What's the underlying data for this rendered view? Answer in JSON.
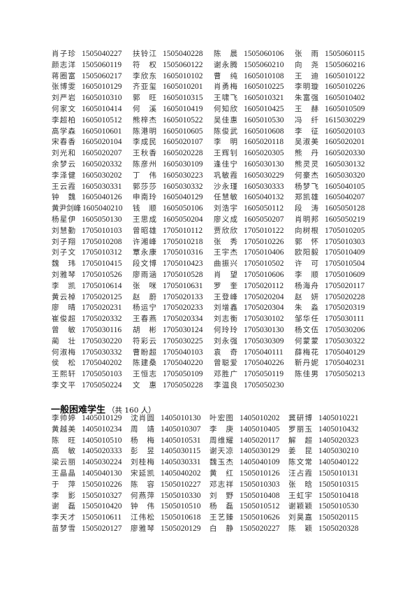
{
  "section1": {
    "rows": [
      [
        [
          "肖子珍",
          "1505040227"
        ],
        [
          "扶铃江",
          "1505040228"
        ],
        [
          "陈晨",
          "1505060106"
        ],
        [
          "张雨",
          "1505060115"
        ]
      ],
      [
        [
          "颜志洋",
          "1505060119"
        ],
        [
          "符权",
          "1505060122"
        ],
        [
          "谢永腾",
          "1505060210"
        ],
        [
          "向尧",
          "1505060216"
        ]
      ],
      [
        [
          "蒋圈富",
          "1505060217"
        ],
        [
          "李欣东",
          "1605010102"
        ],
        [
          "曹纯",
          "1605010108"
        ],
        [
          "王迪",
          "1605010122"
        ]
      ],
      [
        [
          "张博雯",
          "1605010129"
        ],
        [
          "齐亚玺",
          "1605010201"
        ],
        [
          "肖勇梅",
          "1605010225"
        ],
        [
          "李明璇",
          "1605010226"
        ]
      ],
      [
        [
          "刘严岩",
          "1605010310"
        ],
        [
          "郭旺",
          "1605010315"
        ],
        [
          "王啸飞",
          "1605010321"
        ],
        [
          "朱富强",
          "1605010402"
        ]
      ],
      [
        [
          "何家文",
          "1605010414"
        ],
        [
          "何溪",
          "1605010419"
        ],
        [
          "何知欣",
          "1605010425"
        ],
        [
          "王赫",
          "1605010509"
        ]
      ],
      [
        [
          "李超柏",
          "1605010512"
        ],
        [
          "熊梓杰",
          "1605010522"
        ],
        [
          "吴佳惠",
          "1605010530"
        ],
        [
          "冯纤",
          "1615030229"
        ]
      ],
      [
        [
          "高学森",
          "1605010601"
        ],
        [
          "陈港明",
          "1605010605"
        ],
        [
          "陈俊武",
          "1605010608"
        ],
        [
          "李征",
          "1605020103"
        ]
      ],
      [
        [
          "宋春香",
          "1605020104"
        ],
        [
          "李成民",
          "1605020107"
        ],
        [
          "李明",
          "1605020118"
        ],
        [
          "吴淑美",
          "1605020201"
        ]
      ],
      [
        [
          "刘光和",
          "1605020207"
        ],
        [
          "王秋香",
          "1605020228"
        ],
        [
          "王辉钊",
          "1605020305"
        ],
        [
          "熊丹",
          "1605020330"
        ]
      ],
      [
        [
          "余梦云",
          "1605020332"
        ],
        [
          "陈彦州",
          "1605030109"
        ],
        [
          "逢佳宁",
          "1605030130"
        ],
        [
          "熊灵灵",
          "1605030132"
        ]
      ],
      [
        [
          "李泽健",
          "1605030202"
        ],
        [
          "丁伟",
          "1605030223"
        ],
        [
          "巩敏霞",
          "1605030229"
        ],
        [
          "何豪杰",
          "1605030320"
        ]
      ],
      [
        [
          "王云霞",
          "1605030331"
        ],
        [
          "郭莎莎",
          "1605030332"
        ],
        [
          "沙永瑾",
          "1605030333"
        ],
        [
          "杨梦飞",
          "1605040105"
        ]
      ],
      [
        [
          "钟魏",
          "1605040126"
        ],
        [
          "申南玲",
          "1605040129"
        ],
        [
          "任慧敏",
          "1605040132"
        ],
        [
          "郑凯雄",
          "1605040207"
        ]
      ],
      [
        [
          "黄尹剑峰",
          "1605040210"
        ],
        [
          "钱顺",
          "1605050106"
        ],
        [
          "刘浩宇",
          "1605050112"
        ],
        [
          "段涛",
          "1605050128"
        ]
      ],
      [
        [
          "杨星伊",
          "1605050130"
        ],
        [
          "王思成",
          "1605050204"
        ],
        [
          "廖义成",
          "1605050207"
        ],
        [
          "肖明邦",
          "1605050219"
        ]
      ],
      [
        [
          "刘慧勤",
          "1705010103"
        ],
        [
          "曾昭雄",
          "1705010112"
        ],
        [
          "贾欣欣",
          "1705010122"
        ],
        [
          "向树根",
          "1705010205"
        ]
      ],
      [
        [
          "刘子翔",
          "1705010208"
        ],
        [
          "许湘峰",
          "1705010218"
        ],
        [
          "张秀",
          "1705010226"
        ],
        [
          "郭怀",
          "1705010303"
        ]
      ],
      [
        [
          "刘子文",
          "1705010312"
        ],
        [
          "覃永康",
          "1705010316"
        ],
        [
          "王宇杰",
          "1705010406"
        ],
        [
          "欧阳毅",
          "1705010409"
        ]
      ],
      [
        [
          "魏玮",
          "1705010415"
        ],
        [
          "段文博",
          "1705010423"
        ],
        [
          "曲振兴",
          "1705010502"
        ],
        [
          "许可",
          "1705010504"
        ]
      ],
      [
        [
          "刘雅琴",
          "1705010526"
        ],
        [
          "廖雨涵",
          "1705010528"
        ],
        [
          "肖望",
          "1705010606"
        ],
        [
          "李顺",
          "1705010609"
        ]
      ],
      [
        [
          "李凯",
          "1705010614"
        ],
        [
          "张咪",
          "1705010631"
        ],
        [
          "罗奎",
          "1705020112"
        ],
        [
          "杨海舟",
          "1705020117"
        ]
      ],
      [
        [
          "黄云棹",
          "1705020125"
        ],
        [
          "赵蔚",
          "1705020133"
        ],
        [
          "王登峰",
          "1705020204"
        ],
        [
          "赵妍",
          "1705020228"
        ]
      ],
      [
        [
          "廖晴",
          "1705020231"
        ],
        [
          "杨运宁",
          "1705020233"
        ],
        [
          "刘增鑫",
          "1705020304"
        ],
        [
          "朱淼",
          "1705020319"
        ]
      ],
      [
        [
          "崔俊超",
          "1705020332"
        ],
        [
          "王春燕",
          "1705020334"
        ],
        [
          "刘志衡",
          "1705030102"
        ],
        [
          "邹华任",
          "1705030111"
        ]
      ],
      [
        [
          "曾敏",
          "1705030116"
        ],
        [
          "胡彬",
          "1705030124"
        ],
        [
          "何玲玲",
          "1705030130"
        ],
        [
          "杨文伍",
          "1705030206"
        ]
      ],
      [
        [
          "蔺壮",
          "1705030220"
        ],
        [
          "符彩云",
          "1705030225"
        ],
        [
          "刘永强",
          "1705030309"
        ],
        [
          "何蒙蒙",
          "1705030322"
        ]
      ],
      [
        [
          "何淑梅",
          "1705030332"
        ],
        [
          "曹盼超",
          "1705040103"
        ],
        [
          "袁奇",
          "1705040111"
        ],
        [
          "薛梅花",
          "1705040129"
        ]
      ],
      [
        [
          "侯松",
          "1705040202"
        ],
        [
          "陈建桑",
          "1705040220"
        ],
        [
          "曾聪爱",
          "1705040226"
        ],
        [
          "靳丹妮",
          "1705040231"
        ]
      ],
      [
        [
          "王熙轩",
          "1705050103"
        ],
        [
          "王恒志",
          "1705050109"
        ],
        [
          "邓胜广",
          "1705050119"
        ],
        [
          "陈佳男",
          "1705050213"
        ]
      ],
      [
        [
          "李文平",
          "1705050224"
        ],
        [
          "文惠",
          "1705050228"
        ],
        [
          "李温良",
          "1705050230"
        ]
      ]
    ]
  },
  "section2": {
    "title": "一般困难学生",
    "count": "（共 160 人）",
    "rows": [
      [
        [
          "李帅婷",
          "1405010129"
        ],
        [
          "沈肖圆",
          "1405010130"
        ],
        [
          "叶宏图",
          "1405010202"
        ],
        [
          "冀研博",
          "1405010221"
        ]
      ],
      [
        [
          "黄越美",
          "1405010234"
        ],
        [
          "周靖",
          "1405010307"
        ],
        [
          "李庚",
          "1405010405"
        ],
        [
          "罗丽玉",
          "1405010432"
        ]
      ],
      [
        [
          "陈旺",
          "1405010510"
        ],
        [
          "杨梅",
          "1405010531"
        ],
        [
          "周维耀",
          "1405020117"
        ],
        [
          "解超",
          "1405020323"
        ]
      ],
      [
        [
          "高敏",
          "1405020333"
        ],
        [
          "彭昱",
          "1405030115"
        ],
        [
          "谢天凉",
          "1405030129"
        ],
        [
          "姜昆",
          "1405030210"
        ]
      ],
      [
        [
          "梁云丽",
          "1405030224"
        ],
        [
          "刘桂梅",
          "1405030331"
        ],
        [
          "魏玉杰",
          "1405040109"
        ],
        [
          "陈文常",
          "1405040122"
        ]
      ],
      [
        [
          "王晶晶",
          "1405040130"
        ],
        [
          "宋延凯",
          "1405040202"
        ],
        [
          "黄红",
          "1505010126"
        ],
        [
          "汪占霞",
          "1505010131"
        ]
      ],
      [
        [
          "于萍",
          "1505010226"
        ],
        [
          "陈容",
          "1505010227"
        ],
        [
          "邓志祥",
          "1505010303"
        ],
        [
          "张晗",
          "1505010315"
        ]
      ],
      [
        [
          "李影",
          "1505010327"
        ],
        [
          "何燕萍",
          "1505010330"
        ],
        [
          "刘野",
          "1505010408"
        ],
        [
          "王虹宇",
          "1505010418"
        ]
      ],
      [
        [
          "谢磊",
          "1505010420"
        ],
        [
          "钟伟",
          "1505010510"
        ],
        [
          "杨磊",
          "1505010512"
        ],
        [
          "谢颖颖",
          "1505010530"
        ]
      ],
      [
        [
          "李天才",
          "1505010611"
        ],
        [
          "江伟松",
          "1505010618"
        ],
        [
          "王艺臻",
          "1505010626"
        ],
        [
          "刘昊嘉",
          "1505020115"
        ]
      ],
      [
        [
          "苗梦雪",
          "1505020127"
        ],
        [
          "廖雅琴",
          "1505020129"
        ],
        [
          "白静",
          "1505020227"
        ],
        [
          "陈颖",
          "1505020328"
        ]
      ]
    ]
  }
}
